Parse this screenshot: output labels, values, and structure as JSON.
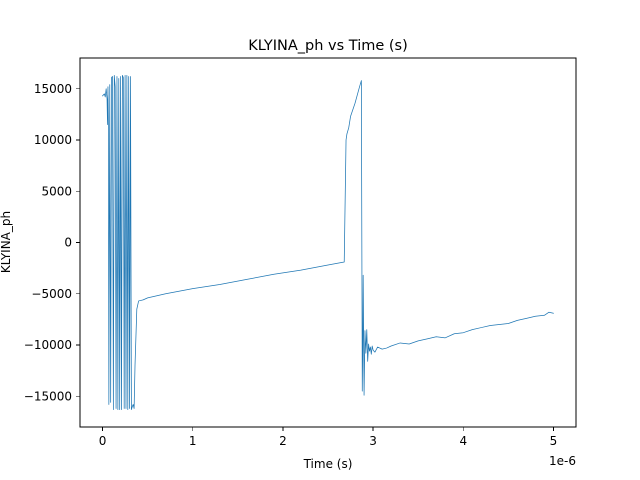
{
  "chart_data": {
    "type": "line",
    "title": "KLYINA_ph vs Time (s)",
    "xlabel": "Time (s)",
    "ylabel": "KLYINA_ph",
    "x_offset_label": "1e-6",
    "x_scale": 1e-06,
    "xlim": [
      -0.25,
      5.25
    ],
    "ylim": [
      -18000,
      18000
    ],
    "x_ticks": [
      0,
      1,
      2,
      3,
      4,
      5
    ],
    "x_tick_labels": [
      "0",
      "1",
      "2",
      "3",
      "4",
      "5"
    ],
    "y_ticks": [
      -15000,
      -10000,
      -5000,
      0,
      5000,
      10000,
      15000
    ],
    "y_tick_labels": [
      "−15000",
      "−10000",
      "−5000",
      "0",
      "5000",
      "10000",
      "15000"
    ],
    "grid": false,
    "colors": {
      "series": "#1f77b4",
      "axes": "#000000",
      "background": "#ffffff"
    },
    "series": [
      {
        "x": [
          0.0,
          0.02,
          0.03,
          0.04,
          0.05,
          0.055,
          0.06,
          0.065,
          0.07,
          0.08,
          0.09,
          0.1,
          0.11,
          0.12,
          0.13,
          0.14,
          0.15,
          0.16,
          0.17,
          0.18,
          0.19,
          0.2,
          0.21,
          0.22,
          0.23,
          0.24,
          0.25,
          0.26,
          0.27,
          0.28,
          0.29,
          0.3,
          0.31,
          0.32,
          0.33,
          0.34,
          0.35,
          0.36,
          0.38,
          0.4,
          0.45,
          0.5,
          0.7,
          1.0,
          1.3,
          1.6,
          1.9,
          2.2,
          2.5,
          2.68,
          2.7,
          2.71,
          2.73,
          2.75,
          2.8,
          2.85,
          2.87,
          2.88,
          2.885,
          2.89,
          2.9,
          2.91,
          2.92,
          2.93,
          2.94,
          2.95,
          2.96,
          2.97,
          2.98,
          2.99,
          3.0,
          3.02,
          3.05,
          3.1,
          3.15,
          3.2,
          3.3,
          3.4,
          3.5,
          3.6,
          3.7,
          3.8,
          3.9,
          4.0,
          4.1,
          4.2,
          4.3,
          4.4,
          4.5,
          4.6,
          4.7,
          4.8,
          4.9,
          4.95,
          5.0
        ],
        "y": [
          14300,
          14500,
          14200,
          15000,
          14000,
          11500,
          15200,
          11300,
          -15800,
          15400,
          -15600,
          16100,
          16200,
          -16300,
          16300,
          15200,
          -16200,
          16200,
          -16300,
          16000,
          -16300,
          16200,
          -16300,
          16300,
          16100,
          -16200,
          16300,
          -16200,
          16300,
          -16300,
          16200,
          -16200,
          16200,
          -16300,
          -16000,
          -15800,
          -16200,
          -12000,
          -6500,
          -5700,
          -5600,
          -5400,
          -5000,
          -4500,
          -4100,
          -3600,
          -3100,
          -2700,
          -2200,
          -1900,
          10000,
          10600,
          11200,
          12300,
          13600,
          15200,
          15800,
          -14500,
          -10500,
          -3200,
          -14900,
          -8600,
          -10800,
          -8500,
          -11600,
          -9900,
          -10600,
          -10200,
          -10900,
          -10100,
          -10500,
          -10700,
          -10200,
          -10400,
          -10300,
          -10100,
          -9800,
          -9900,
          -9600,
          -9400,
          -9200,
          -9300,
          -8900,
          -8800,
          -8500,
          -8300,
          -8100,
          -8000,
          -7900,
          -7600,
          -7400,
          -7200,
          -7100,
          -6800,
          -6900
        ]
      }
    ]
  }
}
